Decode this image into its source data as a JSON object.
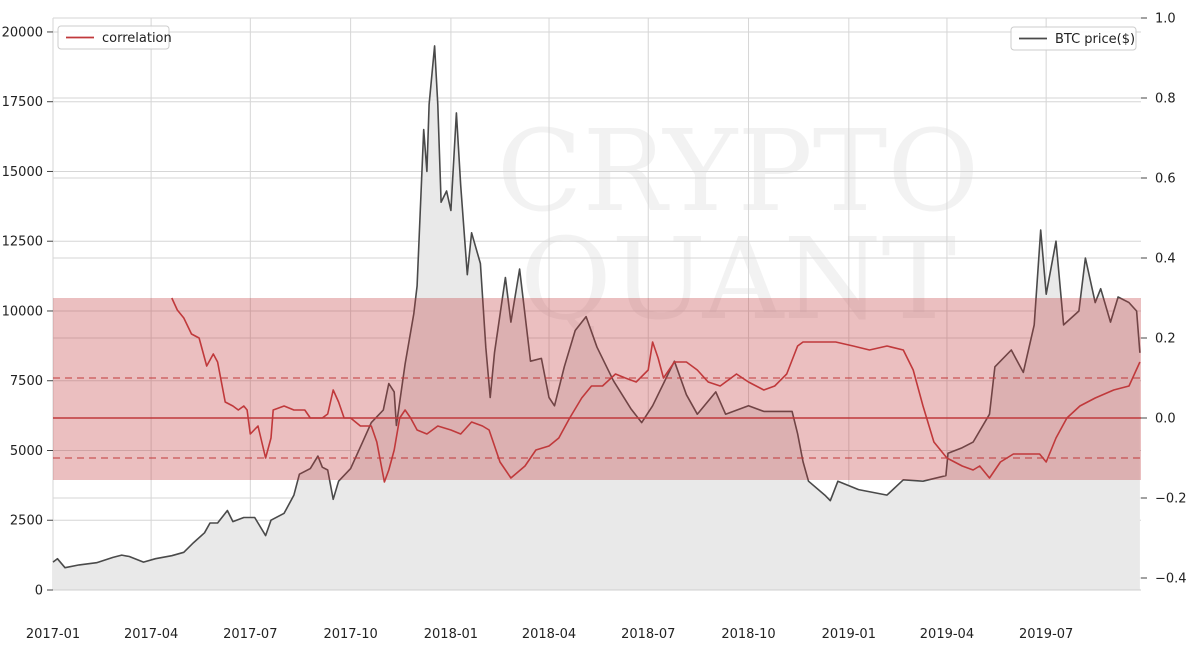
{
  "chart_data": {
    "type": "line",
    "watermark": [
      "CRYPTO",
      "QUANT"
    ],
    "x_ticks": [
      "2017-01",
      "2017-04",
      "2017-07",
      "2017-10",
      "2018-01",
      "2018-04",
      "2018-07",
      "2018-10",
      "2019-01",
      "2019-04",
      "2019-07"
    ],
    "y_left": {
      "range": [
        0,
        20500
      ],
      "ticks": [
        0,
        2500,
        5000,
        7500,
        10000,
        12500,
        15000,
        17500,
        20000
      ],
      "tick_labels": [
        "0",
        "2500",
        "5000",
        "7500",
        "10000",
        "12500",
        "15000",
        "17500",
        "20000"
      ]
    },
    "y_right": {
      "range": [
        -0.43,
        1.0
      ],
      "ticks": [
        -0.4,
        -0.2,
        0.0,
        0.2,
        0.4,
        0.6,
        0.8,
        1.0
      ],
      "tick_labels": [
        "−0.4",
        "−0.2",
        "0.0",
        "0.2",
        "0.4",
        "0.6",
        "0.8",
        "1.0"
      ]
    },
    "legend_left": {
      "label": "correlation",
      "position": "top-left",
      "color": "#c0393b"
    },
    "legend_right": {
      "label": "BTC price($)",
      "position": "top-right",
      "color": "#4a4a4a"
    },
    "colors": {
      "price_line": "#4a4a4a",
      "price_fill": "#e9e9e9",
      "corr_line": "#c0393b",
      "band": "#c0393b",
      "grid": "#d6d6d6"
    },
    "correlation_band": {
      "upper": 0.3,
      "lower": -0.155,
      "mean": 0.0,
      "upper_dashed": 0.1,
      "lower_dashed": -0.1
    },
    "series": [
      {
        "name": "BTC price($)",
        "axis": "left",
        "points": [
          [
            "2017-01-01",
            1000
          ],
          [
            "2017-01-05",
            1120
          ],
          [
            "2017-01-12",
            800
          ],
          [
            "2017-01-25",
            900
          ],
          [
            "2017-02-10",
            980
          ],
          [
            "2017-02-25",
            1170
          ],
          [
            "2017-03-05",
            1250
          ],
          [
            "2017-03-12",
            1200
          ],
          [
            "2017-03-25",
            1000
          ],
          [
            "2017-04-05",
            1120
          ],
          [
            "2017-04-20",
            1230
          ],
          [
            "2017-05-01",
            1350
          ],
          [
            "2017-05-10",
            1700
          ],
          [
            "2017-05-20",
            2050
          ],
          [
            "2017-05-25",
            2400
          ],
          [
            "2017-06-01",
            2400
          ],
          [
            "2017-06-10",
            2850
          ],
          [
            "2017-06-15",
            2450
          ],
          [
            "2017-06-25",
            2600
          ],
          [
            "2017-07-05",
            2600
          ],
          [
            "2017-07-15",
            1950
          ],
          [
            "2017-07-20",
            2500
          ],
          [
            "2017-08-01",
            2750
          ],
          [
            "2017-08-10",
            3400
          ],
          [
            "2017-08-15",
            4150
          ],
          [
            "2017-08-25",
            4350
          ],
          [
            "2017-09-01",
            4800
          ],
          [
            "2017-09-05",
            4400
          ],
          [
            "2017-09-10",
            4300
          ],
          [
            "2017-09-15",
            3250
          ],
          [
            "2017-09-20",
            3900
          ],
          [
            "2017-10-01",
            4350
          ],
          [
            "2017-10-12",
            5300
          ],
          [
            "2017-10-20",
            6000
          ],
          [
            "2017-10-31",
            6450
          ],
          [
            "2017-11-05",
            7400
          ],
          [
            "2017-11-10",
            7100
          ],
          [
            "2017-11-12",
            5900
          ],
          [
            "2017-11-20",
            8100
          ],
          [
            "2017-11-28",
            9900
          ],
          [
            "2017-12-01",
            10900
          ],
          [
            "2017-12-07",
            16500
          ],
          [
            "2017-12-10",
            15000
          ],
          [
            "2017-12-12",
            17400
          ],
          [
            "2017-12-17",
            19500
          ],
          [
            "2017-12-20",
            17400
          ],
          [
            "2017-12-23",
            13900
          ],
          [
            "2017-12-28",
            14300
          ],
          [
            "2018-01-01",
            13600
          ],
          [
            "2018-01-06",
            17100
          ],
          [
            "2018-01-10",
            14500
          ],
          [
            "2018-01-16",
            11300
          ],
          [
            "2018-01-20",
            12800
          ],
          [
            "2018-01-28",
            11700
          ],
          [
            "2018-02-02",
            8700
          ],
          [
            "2018-02-06",
            6900
          ],
          [
            "2018-02-10",
            8500
          ],
          [
            "2018-02-20",
            11200
          ],
          [
            "2018-02-25",
            9600
          ],
          [
            "2018-03-05",
            11500
          ],
          [
            "2018-03-15",
            8200
          ],
          [
            "2018-03-25",
            8300
          ],
          [
            "2018-04-01",
            6900
          ],
          [
            "2018-04-06",
            6600
          ],
          [
            "2018-04-15",
            8000
          ],
          [
            "2018-04-25",
            9300
          ],
          [
            "2018-05-05",
            9800
          ],
          [
            "2018-05-15",
            8700
          ],
          [
            "2018-05-30",
            7500
          ],
          [
            "2018-06-15",
            6500
          ],
          [
            "2018-06-25",
            6000
          ],
          [
            "2018-07-05",
            6600
          ],
          [
            "2018-07-25",
            8200
          ],
          [
            "2018-08-05",
            7000
          ],
          [
            "2018-08-15",
            6300
          ],
          [
            "2018-09-01",
            7100
          ],
          [
            "2018-09-10",
            6300
          ],
          [
            "2018-10-01",
            6600
          ],
          [
            "2018-10-15",
            6400
          ],
          [
            "2018-11-10",
            6400
          ],
          [
            "2018-11-15",
            5600
          ],
          [
            "2018-11-20",
            4600
          ],
          [
            "2018-11-25",
            3900
          ],
          [
            "2018-12-10",
            3400
          ],
          [
            "2018-12-15",
            3200
          ],
          [
            "2018-12-22",
            3900
          ],
          [
            "2019-01-10",
            3600
          ],
          [
            "2019-02-05",
            3400
          ],
          [
            "2019-02-20",
            3950
          ],
          [
            "2019-03-10",
            3900
          ],
          [
            "2019-03-31",
            4100
          ],
          [
            "2019-04-02",
            4900
          ],
          [
            "2019-04-15",
            5100
          ],
          [
            "2019-04-25",
            5300
          ],
          [
            "2019-05-10",
            6300
          ],
          [
            "2019-05-15",
            8000
          ],
          [
            "2019-05-30",
            8600
          ],
          [
            "2019-06-10",
            7800
          ],
          [
            "2019-06-20",
            9500
          ],
          [
            "2019-06-26",
            12900
          ],
          [
            "2019-07-01",
            10600
          ],
          [
            "2019-07-10",
            12500
          ],
          [
            "2019-07-17",
            9500
          ],
          [
            "2019-07-31",
            10000
          ],
          [
            "2019-08-06",
            11900
          ],
          [
            "2019-08-15",
            10300
          ],
          [
            "2019-08-20",
            10800
          ],
          [
            "2019-08-29",
            9600
          ],
          [
            "2019-09-05",
            10500
          ],
          [
            "2019-09-15",
            10300
          ],
          [
            "2019-09-22",
            10000
          ],
          [
            "2019-09-25",
            8500
          ]
        ]
      },
      {
        "name": "correlation",
        "axis": "right",
        "points": [
          [
            "2017-04-20",
            0.3
          ],
          [
            "2017-04-25",
            0.27
          ],
          [
            "2017-05-01",
            0.25
          ],
          [
            "2017-05-08",
            0.21
          ],
          [
            "2017-05-15",
            0.2
          ],
          [
            "2017-05-22",
            0.13
          ],
          [
            "2017-05-28",
            0.16
          ],
          [
            "2017-06-01",
            0.14
          ],
          [
            "2017-06-08",
            0.04
          ],
          [
            "2017-06-15",
            0.03
          ],
          [
            "2017-06-20",
            0.02
          ],
          [
            "2017-06-25",
            0.03
          ],
          [
            "2017-06-28",
            0.02
          ],
          [
            "2017-07-01",
            -0.04
          ],
          [
            "2017-07-08",
            -0.02
          ],
          [
            "2017-07-15",
            -0.1
          ],
          [
            "2017-07-20",
            -0.05
          ],
          [
            "2017-07-22",
            0.02
          ],
          [
            "2017-08-01",
            0.03
          ],
          [
            "2017-08-10",
            0.02
          ],
          [
            "2017-08-20",
            0.02
          ],
          [
            "2017-08-25",
            0.0
          ],
          [
            "2017-09-05",
            0.0
          ],
          [
            "2017-09-10",
            0.01
          ],
          [
            "2017-09-15",
            0.07
          ],
          [
            "2017-09-20",
            0.04
          ],
          [
            "2017-09-25",
            0.0
          ],
          [
            "2017-10-01",
            0.0
          ],
          [
            "2017-10-10",
            -0.02
          ],
          [
            "2017-10-20",
            -0.02
          ],
          [
            "2017-10-25",
            -0.06
          ],
          [
            "2017-11-01",
            -0.16
          ],
          [
            "2017-11-05",
            -0.13
          ],
          [
            "2017-11-10",
            -0.08
          ],
          [
            "2017-11-15",
            0.0
          ],
          [
            "2017-11-20",
            0.02
          ],
          [
            "2017-11-25",
            0.0
          ],
          [
            "2017-12-01",
            -0.03
          ],
          [
            "2017-12-10",
            -0.04
          ],
          [
            "2017-12-20",
            -0.02
          ],
          [
            "2018-01-01",
            -0.03
          ],
          [
            "2018-01-10",
            -0.04
          ],
          [
            "2018-01-20",
            -0.01
          ],
          [
            "2018-01-30",
            -0.02
          ],
          [
            "2018-02-05",
            -0.03
          ],
          [
            "2018-02-15",
            -0.11
          ],
          [
            "2018-02-25",
            -0.15
          ],
          [
            "2018-03-10",
            -0.12
          ],
          [
            "2018-03-20",
            -0.08
          ],
          [
            "2018-04-01",
            -0.07
          ],
          [
            "2018-04-10",
            -0.05
          ],
          [
            "2018-04-20",
            0.0
          ],
          [
            "2018-05-01",
            0.05
          ],
          [
            "2018-05-10",
            0.08
          ],
          [
            "2018-05-20",
            0.08
          ],
          [
            "2018-06-01",
            0.11
          ],
          [
            "2018-06-10",
            0.1
          ],
          [
            "2018-06-20",
            0.09
          ],
          [
            "2018-07-01",
            0.12
          ],
          [
            "2018-07-05",
            0.19
          ],
          [
            "2018-07-10",
            0.15
          ],
          [
            "2018-07-15",
            0.1
          ],
          [
            "2018-07-25",
            0.14
          ],
          [
            "2018-08-05",
            0.14
          ],
          [
            "2018-08-15",
            0.12
          ],
          [
            "2018-08-25",
            0.09
          ],
          [
            "2018-09-05",
            0.08
          ],
          [
            "2018-09-20",
            0.11
          ],
          [
            "2018-10-01",
            0.09
          ],
          [
            "2018-10-15",
            0.07
          ],
          [
            "2018-10-25",
            0.08
          ],
          [
            "2018-11-05",
            0.11
          ],
          [
            "2018-11-15",
            0.18
          ],
          [
            "2018-11-20",
            0.19
          ],
          [
            "2018-11-30",
            0.19
          ],
          [
            "2018-12-10",
            0.19
          ],
          [
            "2018-12-20",
            0.19
          ],
          [
            "2019-01-05",
            0.18
          ],
          [
            "2019-01-20",
            0.17
          ],
          [
            "2019-02-05",
            0.18
          ],
          [
            "2019-02-20",
            0.17
          ],
          [
            "2019-03-01",
            0.12
          ],
          [
            "2019-03-10",
            0.03
          ],
          [
            "2019-03-20",
            -0.06
          ],
          [
            "2019-04-01",
            -0.1
          ],
          [
            "2019-04-15",
            -0.12
          ],
          [
            "2019-04-25",
            -0.13
          ],
          [
            "2019-05-01",
            -0.12
          ],
          [
            "2019-05-10",
            -0.15
          ],
          [
            "2019-05-20",
            -0.11
          ],
          [
            "2019-06-01",
            -0.09
          ],
          [
            "2019-06-15",
            -0.09
          ],
          [
            "2019-06-25",
            -0.09
          ],
          [
            "2019-07-01",
            -0.11
          ],
          [
            "2019-07-10",
            -0.05
          ],
          [
            "2019-07-20",
            0.0
          ],
          [
            "2019-08-01",
            0.03
          ],
          [
            "2019-08-15",
            0.05
          ],
          [
            "2019-09-01",
            0.07
          ],
          [
            "2019-09-15",
            0.08
          ],
          [
            "2019-09-25",
            0.14
          ]
        ]
      }
    ]
  }
}
